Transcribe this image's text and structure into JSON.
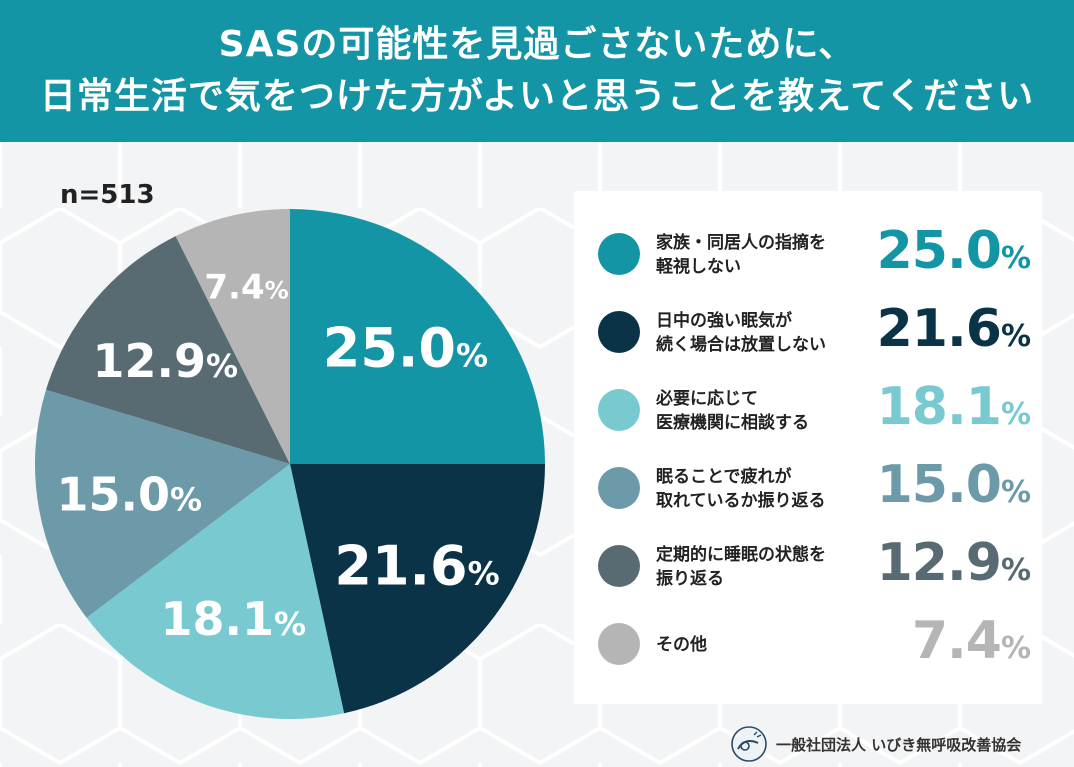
{
  "header": {
    "line1": "SASの可能性を見過ごさないために、",
    "line2": "日常生活で気をつけた方がよいと思うことを教えてください"
  },
  "sample_size": "n=513",
  "chart_data": {
    "type": "pie",
    "title": "SASの可能性を見過ごさないために、日常生活で気をつけた方がよいと思うことを教えてください",
    "n": 513,
    "slices": [
      {
        "label": "家族・同居人の指摘を\n軽視しない",
        "value": 25.0,
        "value_text": "25.0",
        "color": "#1495a5"
      },
      {
        "label": "日中の強い眠気が\n続く場合は放置しない",
        "value": 21.6,
        "value_text": "21.6",
        "color": "#0a3347"
      },
      {
        "label": "必要に応じて\n医療機関に相談する",
        "value": 18.1,
        "value_text": "18.1",
        "color": "#79c9d1"
      },
      {
        "label": "眠ることで疲れが\n取れているか振り返る",
        "value": 15.0,
        "value_text": "15.0",
        "color": "#6c9aa8"
      },
      {
        "label": "定期的に睡眠の状態を\n振り返る",
        "value": 12.9,
        "value_text": "12.9",
        "color": "#586a72"
      },
      {
        "label": "その他",
        "value": 7.4,
        "value_text": "7.4",
        "color": "#b5b5b5"
      }
    ],
    "percent_symbol": "%"
  },
  "footer": {
    "organization": "一般社団法人 いびき無呼吸改善協会"
  }
}
